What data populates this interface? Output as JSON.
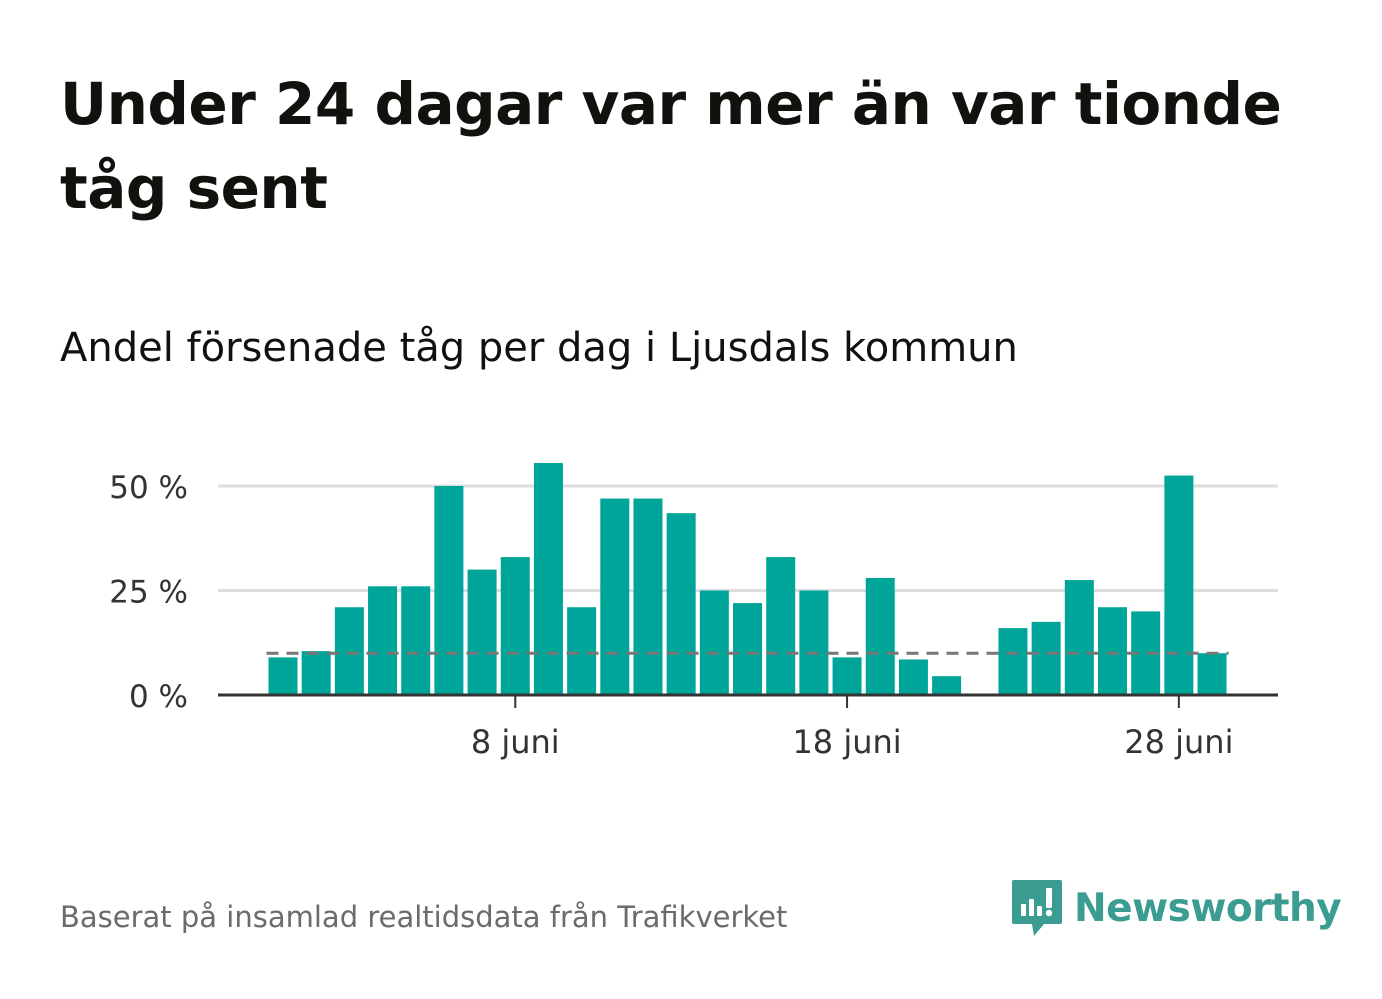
{
  "title": "Under 24 dagar var mer än var tionde tåg sent",
  "subtitle": "Andel försenade tåg per dag i Ljusdals kommun",
  "source": "Baserat på insamlad realtidsdata från Trafikverket",
  "brand": "Newsworthy",
  "colors": {
    "bar": "#00a599",
    "grid": "#dddddd",
    "axis": "#333333",
    "reference": "#777777",
    "brand": "#3b9c91",
    "source_text": "#6b6b6b"
  },
  "chart_data": {
    "type": "bar",
    "categories": [
      "1 juni",
      "2 juni",
      "3 juni",
      "4 juni",
      "5 juni",
      "6 juni",
      "7 juni",
      "8 juni",
      "9 juni",
      "10 juni",
      "11 juni",
      "12 juni",
      "13 juni",
      "14 juni",
      "15 juni",
      "16 juni",
      "17 juni",
      "18 juni",
      "19 juni",
      "20 juni",
      "21 juni",
      "22 juni",
      "23 juni",
      "24 juni",
      "25 juni",
      "26 juni",
      "27 juni",
      "28 juni",
      "29 juni"
    ],
    "values": [
      9,
      10.5,
      21,
      26,
      26,
      50,
      30,
      33,
      55.5,
      21,
      47,
      47,
      43.5,
      25,
      22,
      33,
      25,
      9,
      28,
      8.5,
      4.5,
      null,
      16,
      17.5,
      27.5,
      21,
      20,
      52.5,
      10
    ],
    "x_ticks": [
      {
        "index": 7,
        "label": "8 juni"
      },
      {
        "index": 17,
        "label": "18 juni"
      },
      {
        "index": 27,
        "label": "28 juni"
      }
    ],
    "y_ticks": [
      {
        "value": 0,
        "label": "0 %"
      },
      {
        "value": 25,
        "label": "25 %"
      },
      {
        "value": 50,
        "label": "50 %"
      }
    ],
    "ylim": [
      0,
      57
    ],
    "reference_line": 10,
    "grid": true,
    "legend": "none"
  }
}
